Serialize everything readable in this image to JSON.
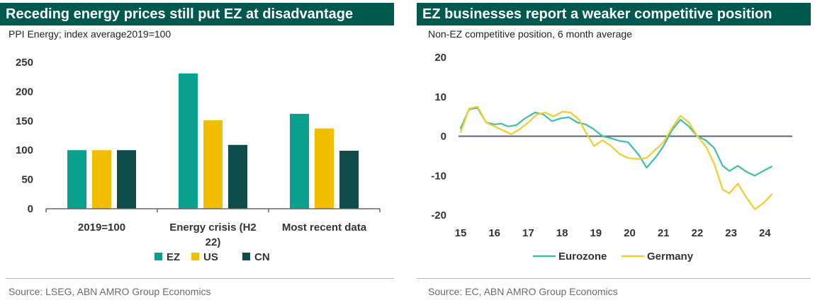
{
  "left_panel": {
    "title": "Receding energy prices still put EZ at disadvantage",
    "subtitle": "PPI Energy; index average2019=100",
    "source": "Source: LSEG, ABN AMRO Group Economics"
  },
  "right_panel": {
    "title": "EZ businesses report a weaker competitive position",
    "subtitle": "Non-EZ competitive position, 6 month average",
    "source": "Source: EC, ABN AMRO Group Economics"
  },
  "colors": {
    "banner": "#00594f",
    "EZ": "#0aa08e",
    "US": "#f2be00",
    "CN": "#0d4c49",
    "Eurozone": "#3dbfa6",
    "Germany": "#f4cb2b"
  },
  "chart_data": [
    {
      "type": "bar",
      "title": "Receding energy prices still put EZ at disadvantage",
      "subtitle": "PPI Energy; index average2019=100",
      "categories": [
        [
          "2019=100"
        ],
        [
          "Energy crisis (H2",
          "22)"
        ],
        [
          "Most recent data"
        ]
      ],
      "series": [
        {
          "name": "EZ",
          "values": [
            100,
            231,
            162
          ]
        },
        {
          "name": "US",
          "values": [
            100,
            151,
            137
          ]
        },
        {
          "name": "CN",
          "values": [
            100,
            109,
            99
          ]
        }
      ],
      "ylim": [
        0,
        250
      ],
      "yticks": [
        0,
        50,
        100,
        150,
        200,
        250
      ],
      "grid": false,
      "legend": "bottom"
    },
    {
      "type": "line",
      "title": "EZ businesses report a weaker competitive position",
      "subtitle": "Non-EZ competitive position, 6 month average",
      "xlim": [
        2015,
        2024.5
      ],
      "xticks": [
        15,
        16,
        17,
        18,
        19,
        20,
        21,
        22,
        23,
        24
      ],
      "ylim": [
        -20,
        20
      ],
      "yticks": [
        -20,
        -10,
        0,
        10,
        20
      ],
      "grid": false,
      "legend": "bottom",
      "series": [
        {
          "name": "Eurozone",
          "points": [
            [
              2015.0,
              2
            ],
            [
              2015.25,
              6.8
            ],
            [
              2015.5,
              7.2
            ],
            [
              2015.75,
              3.5
            ],
            [
              2016.0,
              3
            ],
            [
              2016.2,
              3.2
            ],
            [
              2016.4,
              2.5
            ],
            [
              2016.65,
              2.8
            ],
            [
              2016.9,
              4.5
            ],
            [
              2017.2,
              6
            ],
            [
              2017.45,
              5.5
            ],
            [
              2017.7,
              3.8
            ],
            [
              2017.95,
              4.5
            ],
            [
              2018.2,
              4.8
            ],
            [
              2018.45,
              3.5
            ],
            [
              2018.7,
              3
            ],
            [
              2018.9,
              2
            ],
            [
              2019.2,
              0
            ],
            [
              2019.45,
              -0.5
            ],
            [
              2019.7,
              -1.2
            ],
            [
              2019.95,
              -1.5
            ],
            [
              2020.25,
              -4.5
            ],
            [
              2020.5,
              -8
            ],
            [
              2020.8,
              -5
            ],
            [
              2021.0,
              -2.5
            ],
            [
              2021.25,
              1.5
            ],
            [
              2021.5,
              4.2
            ],
            [
              2021.75,
              2.5
            ],
            [
              2022.0,
              0
            ],
            [
              2022.25,
              -1
            ],
            [
              2022.5,
              -3
            ],
            [
              2022.75,
              -7.5
            ],
            [
              2022.95,
              -8.8
            ],
            [
              2023.2,
              -7.5
            ],
            [
              2023.45,
              -9
            ],
            [
              2023.7,
              -10
            ],
            [
              2023.95,
              -8.8
            ],
            [
              2024.2,
              -7.7
            ]
          ]
        },
        {
          "name": "Germany",
          "points": [
            [
              2015.0,
              1
            ],
            [
              2015.25,
              7
            ],
            [
              2015.5,
              7.5
            ],
            [
              2015.75,
              3.5
            ],
            [
              2016.0,
              2.5
            ],
            [
              2016.25,
              1.5
            ],
            [
              2016.5,
              0.5
            ],
            [
              2016.75,
              1.8
            ],
            [
              2017.0,
              3.5
            ],
            [
              2017.25,
              5.5
            ],
            [
              2017.5,
              6
            ],
            [
              2017.75,
              5
            ],
            [
              2018.0,
              6.2
            ],
            [
              2018.25,
              6
            ],
            [
              2018.5,
              4.2
            ],
            [
              2018.7,
              1
            ],
            [
              2018.95,
              -2.5
            ],
            [
              2019.2,
              -1
            ],
            [
              2019.45,
              -2.5
            ],
            [
              2019.7,
              -4.5
            ],
            [
              2019.95,
              -5.5
            ],
            [
              2020.25,
              -5.8
            ],
            [
              2020.5,
              -5.5
            ],
            [
              2020.75,
              -3.5
            ],
            [
              2021.0,
              -1.5
            ],
            [
              2021.25,
              2
            ],
            [
              2021.5,
              5.2
            ],
            [
              2021.75,
              3.5
            ],
            [
              2022.0,
              0
            ],
            [
              2022.25,
              -2.5
            ],
            [
              2022.5,
              -7
            ],
            [
              2022.75,
              -13.5
            ],
            [
              2022.95,
              -14.5
            ],
            [
              2023.2,
              -12
            ],
            [
              2023.45,
              -15.5
            ],
            [
              2023.7,
              -18.5
            ],
            [
              2023.95,
              -17
            ],
            [
              2024.2,
              -14.8
            ]
          ]
        }
      ]
    }
  ]
}
